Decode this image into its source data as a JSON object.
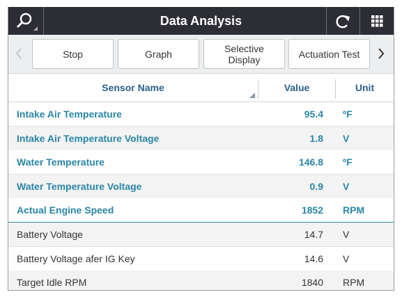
{
  "header": {
    "title": "Data Analysis"
  },
  "toolbar": {
    "buttons": [
      "Stop",
      "Graph",
      "Selective Display",
      "Actuation Test"
    ]
  },
  "table": {
    "columns": [
      "Sensor Name",
      "Value",
      "Unit"
    ],
    "rows": [
      [
        "Intake Air Temperature",
        "95.4",
        "ºF"
      ],
      [
        "Intake Air Temperature Voltage",
        "1.8",
        "V"
      ],
      [
        "Water Temperature",
        "146.8",
        "ºF"
      ],
      [
        "Water Temperature Voltage",
        "0.9",
        "V"
      ],
      [
        "Actual Engine Speed",
        "1852",
        "RPM"
      ],
      [
        "Battery Voltage",
        "14.7",
        "V"
      ],
      [
        "Battery Voltage afer IG Key",
        "14.6",
        "V"
      ],
      [
        "Target Idle RPM",
        "1840",
        "RPM"
      ]
    ],
    "highlighted_rows": 5
  }
}
